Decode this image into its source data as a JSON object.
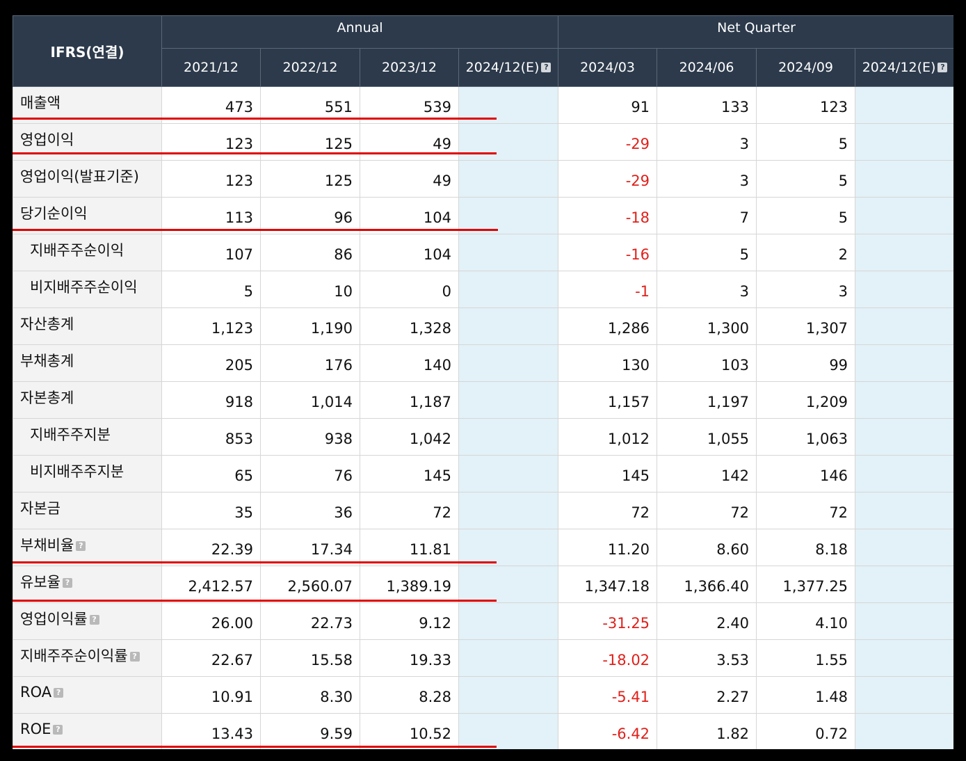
{
  "header": {
    "ifrs_label": "IFRS(연결)",
    "annual_label": "Annual",
    "quarter_label": "Net Quarter",
    "annual_periods": [
      "2021/12",
      "2022/12",
      "2023/12",
      "2024/12(E)"
    ],
    "quarter_periods": [
      "2024/03",
      "2024/06",
      "2024/09",
      "2024/12(E)"
    ],
    "help_icon": "?"
  },
  "rows": [
    {
      "label": "매출액",
      "sub": false,
      "help": false,
      "annual": [
        "473",
        "551",
        "539",
        ""
      ],
      "quarter": [
        "91",
        "133",
        "123",
        ""
      ]
    },
    {
      "label": "영업이익",
      "sub": false,
      "help": false,
      "annual": [
        "123",
        "125",
        "49",
        ""
      ],
      "quarter": [
        "-29",
        "3",
        "5",
        ""
      ]
    },
    {
      "label": "영업이익(발표기준)",
      "sub": false,
      "help": false,
      "annual": [
        "123",
        "125",
        "49",
        ""
      ],
      "quarter": [
        "-29",
        "3",
        "5",
        ""
      ]
    },
    {
      "label": "당기순이익",
      "sub": false,
      "help": false,
      "annual": [
        "113",
        "96",
        "104",
        ""
      ],
      "quarter": [
        "-18",
        "7",
        "5",
        ""
      ]
    },
    {
      "label": "지배주주순이익",
      "sub": true,
      "help": false,
      "annual": [
        "107",
        "86",
        "104",
        ""
      ],
      "quarter": [
        "-16",
        "5",
        "2",
        ""
      ]
    },
    {
      "label": "비지배주주순이익",
      "sub": true,
      "help": false,
      "annual": [
        "5",
        "10",
        "0",
        ""
      ],
      "quarter": [
        "-1",
        "3",
        "3",
        ""
      ]
    },
    {
      "label": "자산총계",
      "sub": false,
      "help": false,
      "annual": [
        "1,123",
        "1,190",
        "1,328",
        ""
      ],
      "quarter": [
        "1,286",
        "1,300",
        "1,307",
        ""
      ]
    },
    {
      "label": "부채총계",
      "sub": false,
      "help": false,
      "annual": [
        "205",
        "176",
        "140",
        ""
      ],
      "quarter": [
        "130",
        "103",
        "99",
        ""
      ]
    },
    {
      "label": "자본총계",
      "sub": false,
      "help": false,
      "annual": [
        "918",
        "1,014",
        "1,187",
        ""
      ],
      "quarter": [
        "1,157",
        "1,197",
        "1,209",
        ""
      ]
    },
    {
      "label": "지배주주지분",
      "sub": true,
      "help": false,
      "annual": [
        "853",
        "938",
        "1,042",
        ""
      ],
      "quarter": [
        "1,012",
        "1,055",
        "1,063",
        ""
      ]
    },
    {
      "label": "비지배주주지분",
      "sub": true,
      "help": false,
      "annual": [
        "65",
        "76",
        "145",
        ""
      ],
      "quarter": [
        "145",
        "142",
        "146",
        ""
      ]
    },
    {
      "label": "자본금",
      "sub": false,
      "help": false,
      "annual": [
        "35",
        "36",
        "72",
        ""
      ],
      "quarter": [
        "72",
        "72",
        "72",
        ""
      ]
    },
    {
      "label": "부채비율",
      "sub": false,
      "help": true,
      "annual": [
        "22.39",
        "17.34",
        "11.81",
        ""
      ],
      "quarter": [
        "11.20",
        "8.60",
        "8.18",
        ""
      ]
    },
    {
      "label": "유보율",
      "sub": false,
      "help": true,
      "annual": [
        "2,412.57",
        "2,560.07",
        "1,389.19",
        ""
      ],
      "quarter": [
        "1,347.18",
        "1,366.40",
        "1,377.25",
        ""
      ]
    },
    {
      "label": "영업이익률",
      "sub": false,
      "help": true,
      "annual": [
        "26.00",
        "22.73",
        "9.12",
        ""
      ],
      "quarter": [
        "-31.25",
        "2.40",
        "4.10",
        ""
      ]
    },
    {
      "label": "지배주주순이익률",
      "sub": false,
      "help": true,
      "annual": [
        "22.67",
        "15.58",
        "19.33",
        ""
      ],
      "quarter": [
        "-18.02",
        "3.53",
        "1.55",
        ""
      ]
    },
    {
      "label": "ROA",
      "sub": false,
      "help": true,
      "annual": [
        "10.91",
        "8.30",
        "8.28",
        ""
      ],
      "quarter": [
        "-5.41",
        "2.27",
        "1.48",
        ""
      ]
    },
    {
      "label": "ROE",
      "sub": false,
      "help": true,
      "annual": [
        "13.43",
        "9.59",
        "10.52",
        ""
      ],
      "quarter": [
        "-6.42",
        "1.82",
        "0.72",
        ""
      ]
    }
  ],
  "colors": {
    "header_bg": "#2c3a4b",
    "label_bg": "#f3f3f3",
    "estimate_bg": "#e3f1f8",
    "negative_text": "#e0201a",
    "highlight_line": "#e00000"
  }
}
